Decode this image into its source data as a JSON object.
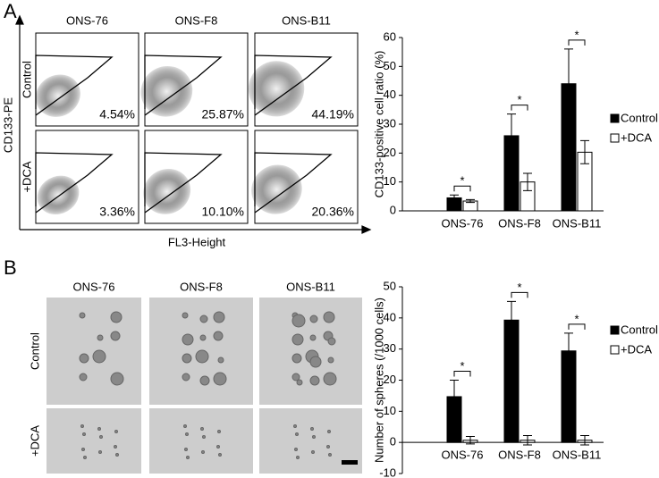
{
  "panel_a": {
    "label": "A",
    "columns": [
      "ONS-76",
      "ONS-F8",
      "ONS-B11"
    ],
    "rows": [
      "Control",
      "+DCA"
    ],
    "y_axis_label": "CD133-PE",
    "x_axis_label": "FL3-Height",
    "percentages": [
      [
        "4.54%",
        "25.87%",
        "44.19%"
      ],
      [
        "3.36%",
        "10.10%",
        "20.36%"
      ]
    ]
  },
  "panel_b": {
    "label": "B",
    "columns": [
      "ONS-76",
      "ONS-F8",
      "ONS-B11"
    ],
    "rows": [
      "Control",
      "+DCA"
    ]
  },
  "chart_data": [
    {
      "type": "bar",
      "y_label": "CD133-positive cell ratio (%)",
      "categories": [
        "ONS-76",
        "ONS-F8",
        "ONS-B11"
      ],
      "series": [
        {
          "name": "Control",
          "color": "#000000",
          "values": [
            4.5,
            26,
            44
          ],
          "errors": [
            1,
            7.5,
            12
          ]
        },
        {
          "name": "+DCA",
          "color": "#ffffff",
          "values": [
            3.4,
            10,
            20.3
          ],
          "errors": [
            0.5,
            3,
            4
          ]
        }
      ],
      "significance": [
        "*",
        "*",
        "*"
      ],
      "ylim": [
        0,
        60
      ],
      "yticks": [
        0,
        10,
        20,
        30,
        40,
        50,
        60
      ],
      "grid": false,
      "legend": "right"
    },
    {
      "type": "bar",
      "y_label": "Number of spheres (/1000 cells)",
      "categories": [
        "ONS-76",
        "ONS-F8",
        "ONS-B11"
      ],
      "series": [
        {
          "name": "Control",
          "color": "#000000",
          "values": [
            14.7,
            39.3,
            29.4
          ],
          "errors": [
            5.3,
            6,
            5.7
          ]
        },
        {
          "name": "+DCA",
          "color": "#ffffff",
          "values": [
            0.7,
            0.7,
            0.7
          ],
          "errors": [
            1.2,
            1.5,
            1.5
          ]
        }
      ],
      "significance": [
        "*",
        "*",
        "*"
      ],
      "ylim": [
        -10,
        50
      ],
      "yticks": [
        -10,
        0,
        10,
        20,
        30,
        40,
        50
      ],
      "grid": false,
      "legend": "right"
    }
  ]
}
